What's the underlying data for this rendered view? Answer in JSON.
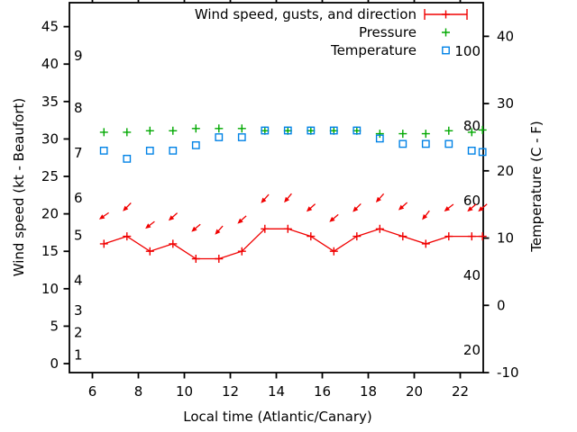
{
  "chart_data": {
    "type": "line",
    "x_label": "Local time (Atlantic/Canary)",
    "x_ticks": [
      6,
      8,
      10,
      12,
      14,
      16,
      18,
      20,
      22
    ],
    "x_range": [
      5,
      23
    ],
    "x": [
      6.5,
      7.5,
      8.5,
      9.5,
      10.5,
      11.5,
      12.5,
      13.5,
      14.5,
      15.5,
      16.5,
      17.5,
      18.5,
      19.5,
      20.5,
      21.5,
      22.5,
      22.97
    ],
    "y_left": {
      "label": "Wind speed (kt - Beaufort)",
      "ticks": [
        0,
        5,
        10,
        15,
        20,
        25,
        30,
        35,
        40,
        45
      ],
      "range": [
        -1.2,
        48.2
      ],
      "beaufort_labels": [
        "1",
        "2",
        "3",
        "4",
        "5",
        "6",
        "7",
        "8",
        "9"
      ],
      "beaufort_positions_kt": [
        1,
        4,
        7,
        11,
        17,
        22,
        28,
        34,
        41
      ]
    },
    "y_right": {
      "label": "Temperature (C - F)",
      "ticks": [
        -10,
        0,
        10,
        20,
        30,
        40
      ],
      "range": [
        -10,
        45
      ],
      "fahrenheit_inner_ticks": [
        20,
        40,
        60,
        80,
        100
      ]
    },
    "series": [
      {
        "name": "Wind speed, gusts, and direction",
        "type": "line-plus-markers",
        "axis": "left_kt",
        "color": "#f00000",
        "values_kt": [
          16,
          17,
          15,
          16,
          14,
          14,
          15,
          18,
          18,
          17,
          15,
          17,
          18,
          17,
          16,
          17,
          17,
          17
        ]
      },
      {
        "name": "Wind gusts with direction arrows",
        "type": "direction-arrows",
        "axis": "left_kt",
        "color": "#f00000",
        "gust_kt": [
          19.7,
          20.9,
          18.5,
          19.6,
          18.1,
          17.8,
          19.2,
          22,
          22.1,
          20.8,
          19.4,
          20.8,
          22.1,
          21,
          19.8,
          20.8,
          20.8,
          20.8
        ],
        "arrow_toward_deg": [
          235,
          225,
          232,
          228,
          230,
          222,
          228,
          222,
          220,
          228,
          230,
          225,
          222,
          228,
          218,
          232,
          230,
          230
        ]
      },
      {
        "name": "Pressure",
        "type": "plus-markers",
        "axis": "left_scale_position",
        "color": "#00a800",
        "values_on_left_scale": [
          30.9,
          30.9,
          31.1,
          31.1,
          31.4,
          31.4,
          31.4,
          31.1,
          31.1,
          31.1,
          31.1,
          31.1,
          30.7,
          30.7,
          30.7,
          31.1,
          30.9,
          31.2
        ]
      },
      {
        "name": "Temperature",
        "type": "open-square-markers",
        "axis": "right_celsius",
        "color": "#0082e6",
        "values_c": [
          23,
          21.8,
          23,
          23,
          23.8,
          25,
          25,
          26,
          26,
          26,
          26,
          26,
          24.8,
          24,
          24,
          24,
          23,
          22.8
        ]
      }
    ],
    "legend": {
      "position": "top-right-inside",
      "entries": [
        {
          "label": "Wind speed, gusts, and direction",
          "marker": "errorbar-plus",
          "color": "#f00000"
        },
        {
          "label": "Pressure",
          "marker": "plus",
          "color": "#00a800"
        },
        {
          "label": "Temperature",
          "marker": "open-square",
          "color": "#0082e6"
        }
      ]
    },
    "grid": false
  }
}
